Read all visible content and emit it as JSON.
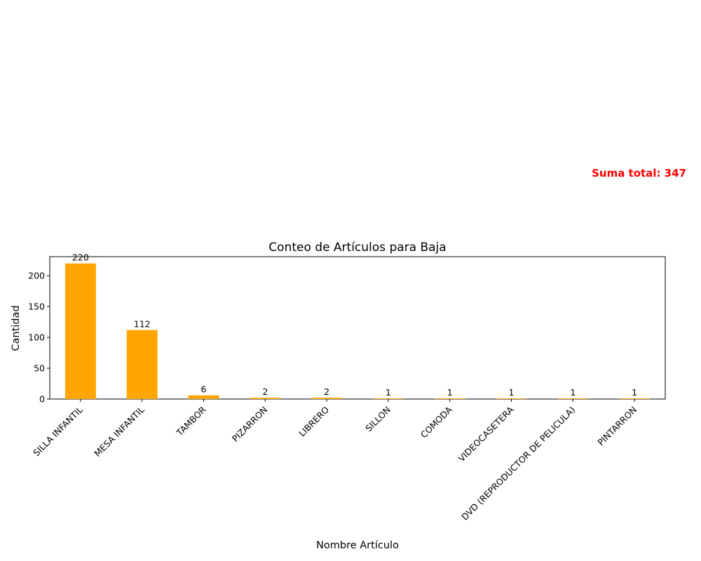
{
  "chart_data": {
    "type": "bar",
    "title": "Conteo de Artículos para Baja",
    "xlabel": "Nombre Artículo",
    "ylabel": "Cantidad",
    "categories": [
      "SILLA INFANTIL",
      "MESA INFANTIL",
      "TAMBOR",
      "PIZARRON",
      "LIBRERO",
      "SILLON",
      "COMODA",
      "VIDEOCASETERA",
      "DVD (REPRODUCTOR DE PELICULA)",
      "PINTARRON"
    ],
    "values": [
      220,
      112,
      6,
      2,
      2,
      1,
      1,
      1,
      1,
      1
    ],
    "data_labels": [
      "220",
      "112",
      "6",
      "2",
      "2",
      "1",
      "1",
      "1",
      "1",
      "1"
    ],
    "ylim": [
      0,
      231
    ],
    "yticks": [
      0,
      50,
      100,
      150,
      200
    ],
    "ytick_labels": [
      "0",
      "50",
      "100",
      "150",
      "200"
    ],
    "grid": false,
    "bar_color": "#ffa500",
    "x_tick_rotation": -45,
    "annotation": {
      "text": "Suma total: 347",
      "color": "#ff0000"
    }
  }
}
